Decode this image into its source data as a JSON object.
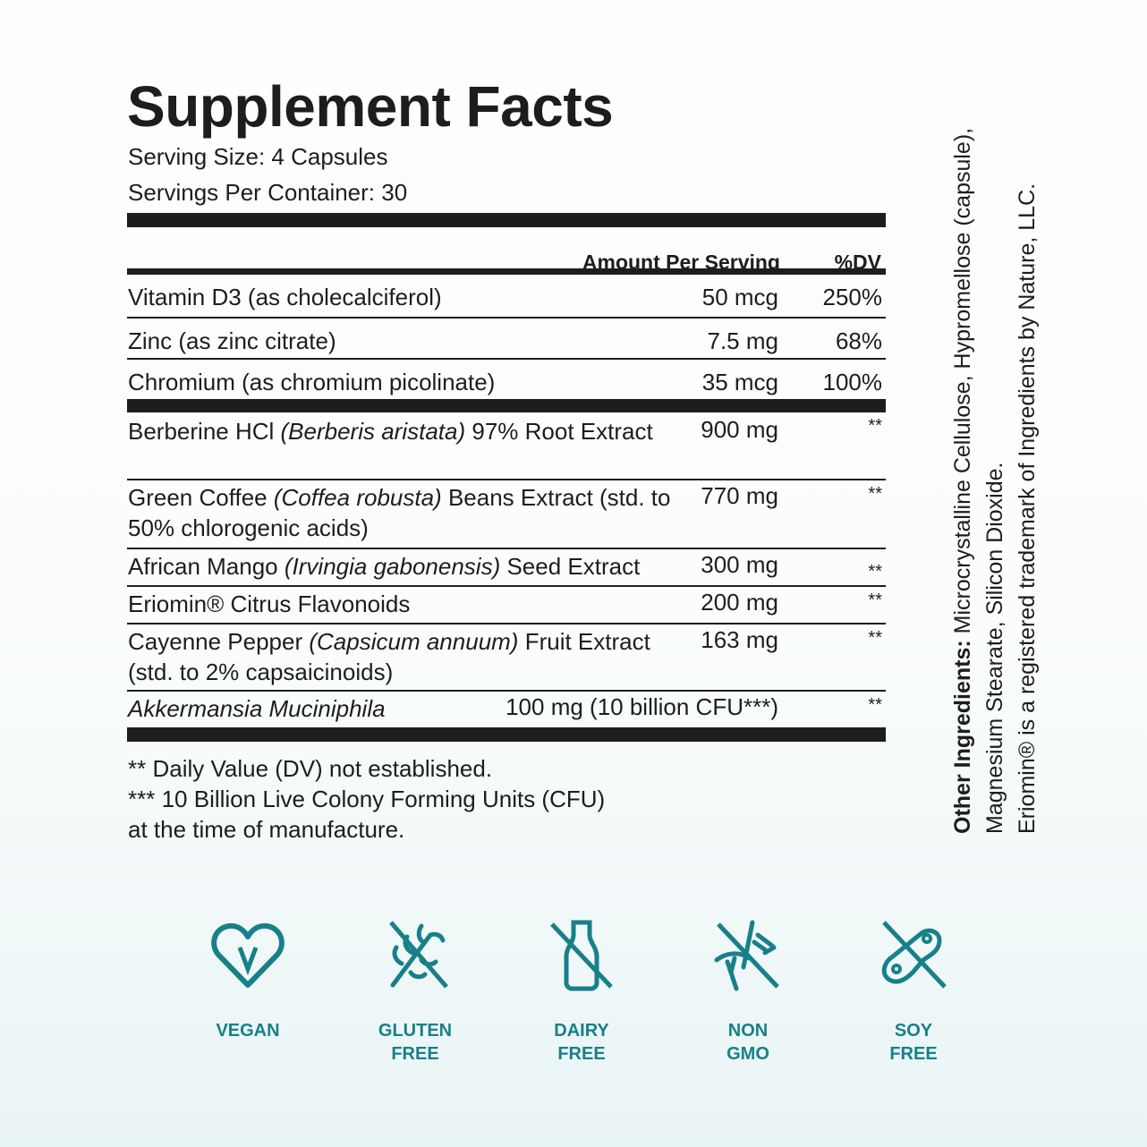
{
  "title": "Supplement Facts",
  "serving_size": "Serving Size: 4 Capsules",
  "servings_per_container": "Servings Per Container: 30",
  "header": {
    "amount": "Amount Per Serving",
    "dv": "%DV"
  },
  "vitamins": [
    {
      "name": "Vitamin D3 (as cholecalciferol)",
      "amount": "50 mcg",
      "dv": "250%"
    },
    {
      "name": "Zinc (as zinc citrate)",
      "amount": "7.5 mg",
      "dv": "68%"
    },
    {
      "name": "Chromium (as chromium picolinate)",
      "amount": "35 mcg",
      "dv": "100%"
    }
  ],
  "blend": [
    {
      "pre": "Berberine HCl ",
      "it": "(Berberis aristata)",
      "post": " 97% Root Extract",
      "amount": "900 mg",
      "dv": "**"
    },
    {
      "pre": "Green Coffee ",
      "it": "(Coffea robusta)",
      "post": " Beans Extract (std. to 50% chlorogenic acids)",
      "amount": "770 mg",
      "dv": "**"
    },
    {
      "pre": "African Mango ",
      "it": "(Irvingia gabonensis)",
      "post": " Seed Extract",
      "amount": "300 mg",
      "dv": "**"
    },
    {
      "pre": "Eriomin® Citrus Flavonoids",
      "it": "",
      "post": "",
      "amount": "200 mg",
      "dv": "**"
    },
    {
      "pre": "Cayenne Pepper ",
      "it": "(Capsicum annuum)",
      "post": " Fruit Extract (std. to 2% capsaicinoids)",
      "amount": "163 mg",
      "dv": "**"
    },
    {
      "pre": "",
      "it": "Akkermansia Muciniphila",
      "post": "",
      "amount": "100 mg (10 billion CFU***)",
      "dv": "**"
    }
  ],
  "footnotes": [
    "** Daily Value (DV) not established.",
    "*** 10 Billion Live Colony Forming Units (CFU)",
    "at the time of manufacture."
  ],
  "other_ingredients": {
    "label": "Other Ingredients:",
    "text": " Microcrystalline Cellulose, Hypromellose (capsule), Magnesium Stearate, Silicon Dioxide."
  },
  "trademark": "Eriomin® is a registered trademark of Ingredients by Nature, LLC.",
  "badges": [
    {
      "icon": "vegan-heart-icon",
      "line1": "VEGAN",
      "line2": ""
    },
    {
      "icon": "gluten-free-icon",
      "line1": "GLUTEN",
      "line2": "FREE"
    },
    {
      "icon": "dairy-free-icon",
      "line1": "DAIRY",
      "line2": "FREE"
    },
    {
      "icon": "non-gmo-icon",
      "line1": "NON",
      "line2": "GMO"
    },
    {
      "icon": "soy-free-icon",
      "line1": "SOY",
      "line2": "FREE"
    }
  ],
  "colors": {
    "accent": "#17808a",
    "text": "#1d1d1f"
  }
}
